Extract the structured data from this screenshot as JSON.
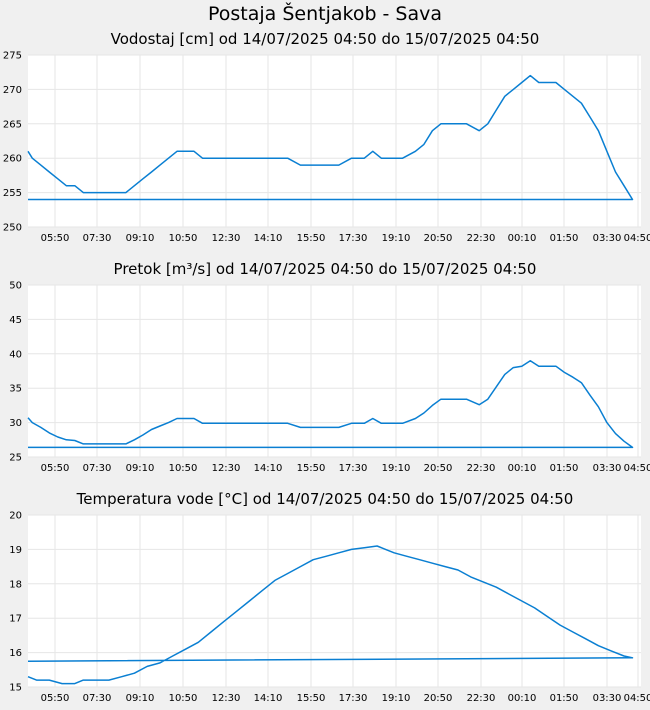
{
  "page_title": "Postaja Šentjakob - Sava",
  "line_color": "#0a7fd2",
  "chart_data": [
    {
      "type": "line",
      "title": "Vodostaj [cm] od 14/07/2025 04:50 do 15/07/2025 04:50",
      "xlabel": "",
      "ylabel": "",
      "x_tick_labels": [
        "05:50",
        "07:30",
        "09:10",
        "10:50",
        "12:30",
        "14:10",
        "15:50",
        "17:30",
        "19:10",
        "20:50",
        "22:30",
        "00:10",
        "01:50",
        "03:30",
        "04:50"
      ],
      "xlim": [
        "14/07/2025 04:50",
        "15/07/2025 04:50"
      ],
      "ylim": [
        250,
        275
      ],
      "y_ticks": [
        250,
        255,
        260,
        265,
        270,
        275
      ],
      "grid": true,
      "series": [
        {
          "x": [
            "04:50",
            "05:00",
            "05:20",
            "05:40",
            "06:00",
            "06:20",
            "06:40",
            "07:00",
            "07:20",
            "07:40",
            "08:00",
            "08:20",
            "08:40",
            "09:00",
            "09:20",
            "09:40",
            "10:00",
            "10:20",
            "10:40",
            "11:00",
            "11:20",
            "11:40",
            "12:00",
            "12:30",
            "13:00",
            "13:30",
            "14:00",
            "14:30",
            "15:00",
            "15:30",
            "16:00",
            "16:30",
            "17:00",
            "17:30",
            "18:00",
            "18:20",
            "18:40",
            "19:00",
            "19:30",
            "20:00",
            "20:20",
            "20:40",
            "21:00",
            "21:30",
            "22:00",
            "22:30",
            "22:50",
            "23:10",
            "23:30",
            "23:50",
            "00:10",
            "00:30",
            "00:50",
            "01:10",
            "01:30",
            "01:50",
            "02:10",
            "02:30",
            "02:50",
            "03:10",
            "03:30",
            "03:50",
            "04:10",
            "04:30",
            "04:50"
          ],
          "values": [
            261,
            260,
            259,
            258,
            257,
            256,
            256,
            255,
            255,
            255,
            255,
            255,
            255,
            256,
            257,
            258,
            259,
            260,
            261,
            261,
            261,
            260,
            260,
            260,
            260,
            260,
            260,
            260,
            260,
            259,
            259,
            259,
            259,
            260,
            260,
            261,
            260,
            260,
            260,
            261,
            262,
            264,
            265,
            265,
            265,
            264,
            265,
            267,
            269,
            270,
            271,
            272,
            271,
            271,
            271,
            270,
            269,
            268,
            266,
            264,
            261,
            258,
            256,
            254,
            254
          ]
        }
      ]
    },
    {
      "type": "line",
      "title": "Pretok [m³/s] od 14/07/2025 04:50 do 15/07/2025 04:50",
      "xlabel": "",
      "ylabel": "",
      "x_tick_labels": [
        "05:50",
        "07:30",
        "09:10",
        "10:50",
        "12:30",
        "14:10",
        "15:50",
        "17:30",
        "19:10",
        "20:50",
        "22:30",
        "00:10",
        "01:50",
        "03:30",
        "04:50"
      ],
      "xlim": [
        "14/07/2025 04:50",
        "15/07/2025 04:50"
      ],
      "ylim": [
        25,
        50
      ],
      "y_ticks": [
        25,
        30,
        35,
        40,
        45,
        50
      ],
      "grid": true,
      "series": [
        {
          "x": [
            "04:50",
            "05:00",
            "05:20",
            "05:40",
            "06:00",
            "06:20",
            "06:40",
            "07:00",
            "07:20",
            "07:40",
            "08:00",
            "08:20",
            "08:40",
            "09:00",
            "09:20",
            "09:40",
            "10:00",
            "10:20",
            "10:40",
            "11:00",
            "11:20",
            "11:40",
            "12:00",
            "12:30",
            "13:00",
            "13:30",
            "14:00",
            "14:30",
            "15:00",
            "15:30",
            "16:00",
            "16:30",
            "17:00",
            "17:30",
            "18:00",
            "18:20",
            "18:40",
            "19:00",
            "19:30",
            "20:00",
            "20:20",
            "20:40",
            "21:00",
            "21:30",
            "22:00",
            "22:30",
            "22:50",
            "23:10",
            "23:30",
            "23:50",
            "00:10",
            "00:30",
            "00:50",
            "01:10",
            "01:30",
            "01:50",
            "02:10",
            "02:30",
            "02:50",
            "03:10",
            "03:30",
            "03:50",
            "04:10",
            "04:30",
            "04:50"
          ],
          "values": [
            30.7,
            30,
            29.3,
            28.5,
            27.9,
            27.5,
            27.4,
            26.9,
            26.9,
            26.9,
            26.9,
            26.9,
            26.9,
            27.5,
            28.2,
            29,
            29.5,
            30,
            30.6,
            30.6,
            30.6,
            29.9,
            29.9,
            29.9,
            29.9,
            29.9,
            29.9,
            29.9,
            29.9,
            29.3,
            29.3,
            29.3,
            29.3,
            29.9,
            29.9,
            30.6,
            29.9,
            29.9,
            29.9,
            30.6,
            31.4,
            32.5,
            33.4,
            33.4,
            33.4,
            32.6,
            33.4,
            35.2,
            37,
            38,
            38.2,
            39,
            38.2,
            38.2,
            38.2,
            37.3,
            36.6,
            35.8,
            34,
            32.3,
            30,
            28.4,
            27.3,
            26.4,
            26.4
          ]
        }
      ]
    },
    {
      "type": "line",
      "title": "Temperatura vode [°C] od 14/07/2025 04:50 do 15/07/2025 04:50",
      "xlabel": "",
      "ylabel": "",
      "x_tick_labels": [
        "05:50",
        "07:30",
        "09:10",
        "10:50",
        "12:30",
        "14:10",
        "15:50",
        "17:30",
        "19:10",
        "20:50",
        "22:30",
        "00:10",
        "01:50",
        "03:30",
        "04:50"
      ],
      "xlim": [
        "14/07/2025 04:50",
        "15/07/2025 04:50"
      ],
      "ylim": [
        15,
        20
      ],
      "y_ticks": [
        15,
        16,
        17,
        18,
        19,
        20
      ],
      "grid": true,
      "series": [
        {
          "x": [
            "04:50",
            "05:10",
            "05:40",
            "06:10",
            "06:40",
            "07:00",
            "07:30",
            "08:00",
            "08:30",
            "09:00",
            "09:30",
            "10:00",
            "10:30",
            "11:00",
            "11:30",
            "12:00",
            "12:30",
            "13:00",
            "13:30",
            "14:00",
            "14:30",
            "15:00",
            "15:30",
            "16:00",
            "16:30",
            "17:00",
            "17:30",
            "18:00",
            "18:30",
            "18:50",
            "19:10",
            "19:40",
            "20:10",
            "20:40",
            "21:10",
            "21:40",
            "22:10",
            "22:40",
            "23:10",
            "23:40",
            "00:10",
            "00:40",
            "01:10",
            "01:40",
            "02:10",
            "02:40",
            "03:10",
            "03:40",
            "04:10",
            "04:30",
            "04:50"
          ],
          "values": [
            15.3,
            15.2,
            15.2,
            15.1,
            15.1,
            15.2,
            15.2,
            15.2,
            15.3,
            15.4,
            15.6,
            15.7,
            15.9,
            16.1,
            16.3,
            16.6,
            16.9,
            17.2,
            17.5,
            17.8,
            18.1,
            18.3,
            18.5,
            18.7,
            18.8,
            18.9,
            19,
            19.05,
            19.1,
            19,
            18.9,
            18.8,
            18.7,
            18.6,
            18.5,
            18.4,
            18.2,
            18.05,
            17.9,
            17.7,
            17.5,
            17.3,
            17.05,
            16.8,
            16.6,
            16.4,
            16.2,
            16.05,
            15.9,
            15.85,
            15.75
          ]
        }
      ]
    }
  ]
}
